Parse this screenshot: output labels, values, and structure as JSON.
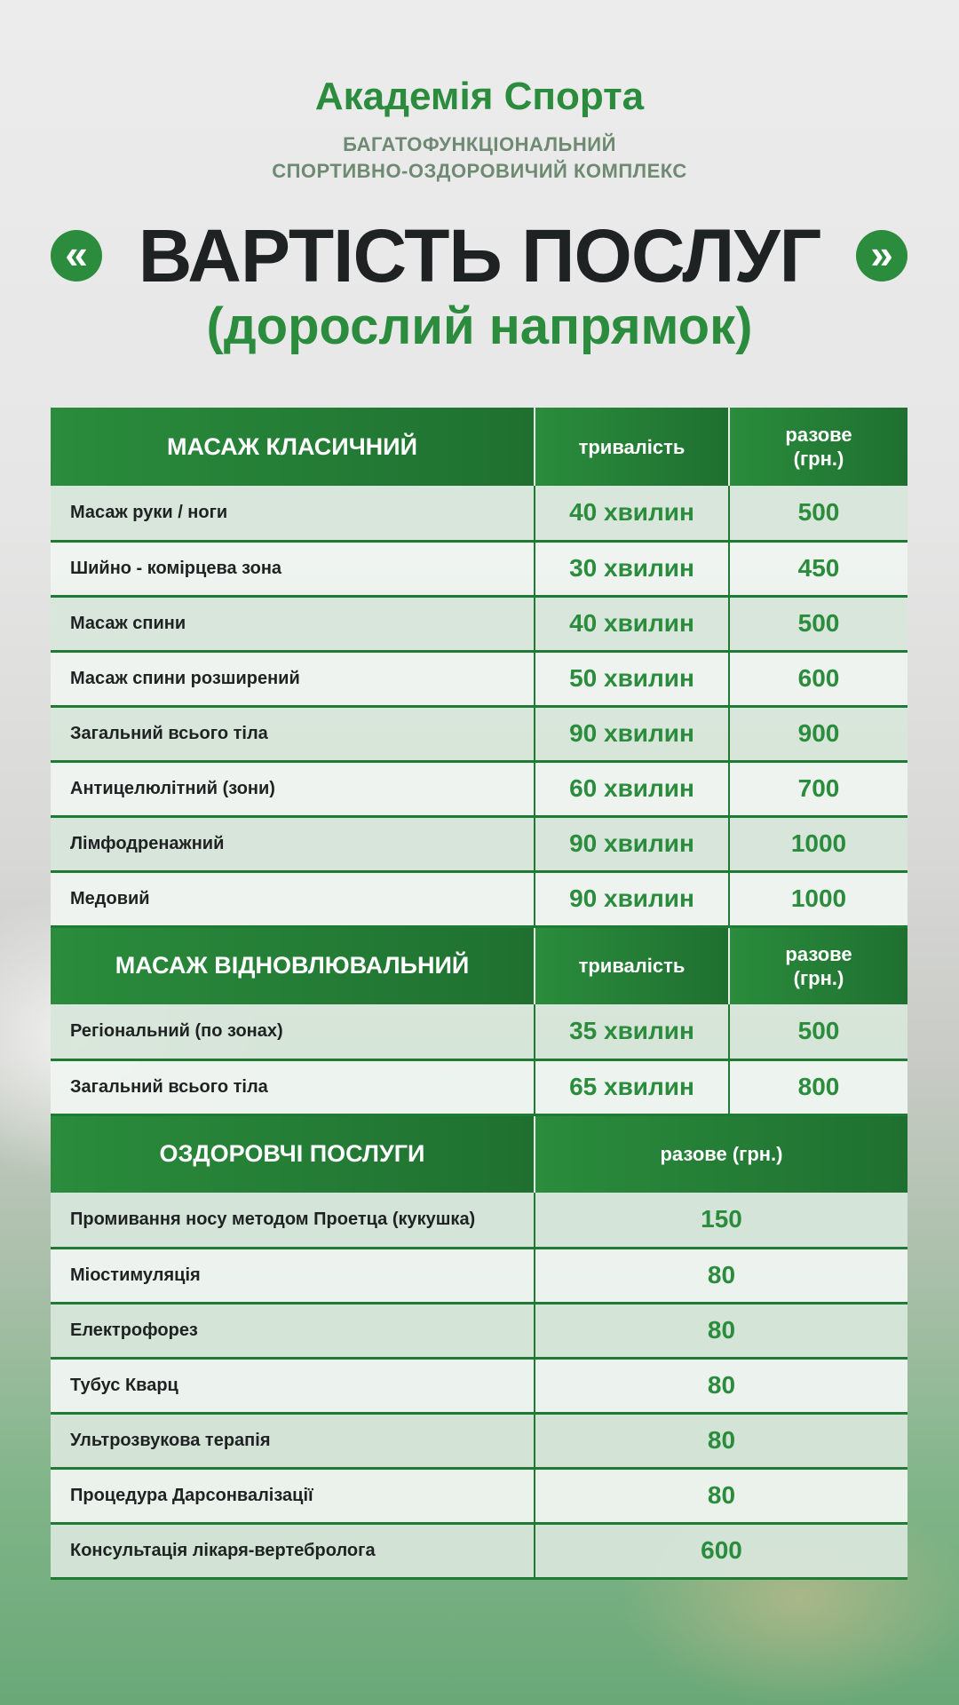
{
  "brand": "Академія Спорта",
  "subtitle": [
    "БАГАТОФУНКЦІОНАЛЬНИЙ",
    "СПОРТИВНО-ОЗДОРОВИЧИЙ КОМПЛЕКС"
  ],
  "title": "ВАРТІСТЬ ПОСЛУГ",
  "title2": "(дорослий напрямок)",
  "arrows": {
    "left": "«",
    "right": "»"
  },
  "colors": {
    "accent": "#2a8c3c",
    "dark": "#1f2222"
  },
  "sections": [
    {
      "title": "МАСАЖ КЛАСИЧНИЙ",
      "col_duration": "тривалість",
      "col_price": "разове (грн.)",
      "rows": [
        {
          "name": "Масаж руки / ноги",
          "duration": "40 хвилин",
          "price": "500"
        },
        {
          "name": "Шийно - комірцева зона",
          "duration": "30 хвилин",
          "price": "450"
        },
        {
          "name": "Масаж спини",
          "duration": "40 хвилин",
          "price": "500"
        },
        {
          "name": "Масаж спини розширений",
          "duration": "50 хвилин",
          "price": "600"
        },
        {
          "name": "Загальний всього тіла",
          "duration": "90 хвилин",
          "price": "900"
        },
        {
          "name": "Антицелюлітний (зони)",
          "duration": "60 хвилин",
          "price": "700"
        },
        {
          "name": "Лімфодренажний",
          "duration": "90 хвилин",
          "price": "1000"
        },
        {
          "name": "Медовий",
          "duration": "90 хвилин",
          "price": "1000"
        }
      ]
    },
    {
      "title": "МАСАЖ ВІДНОВЛЮВАЛЬНИЙ",
      "col_duration": "тривалість",
      "col_price": "разове (грн.)",
      "rows": [
        {
          "name": "Регіональний (по зонах)",
          "duration": "35 хвилин",
          "price": "500"
        },
        {
          "name": "Загальний всього тіла",
          "duration": "65 хвилин",
          "price": "800"
        }
      ]
    },
    {
      "title": "ОЗДОРОВЧІ ПОСЛУГИ",
      "col_price": "разове (грн.)",
      "rows": [
        {
          "name": "Промивання носу методом Проетца (кукушка)",
          "price": "150"
        },
        {
          "name": "Міостимуляція",
          "price": "80"
        },
        {
          "name": "Електрофорез",
          "price": "80"
        },
        {
          "name": "Тубус Кварц",
          "price": "80"
        },
        {
          "name": "Ультрозвукова терапія",
          "price": "80"
        },
        {
          "name": "Процедура Дарсонвалізації",
          "price": "80"
        },
        {
          "name": "Консультація лікаря-вертебролога",
          "price": "600"
        }
      ]
    }
  ]
}
